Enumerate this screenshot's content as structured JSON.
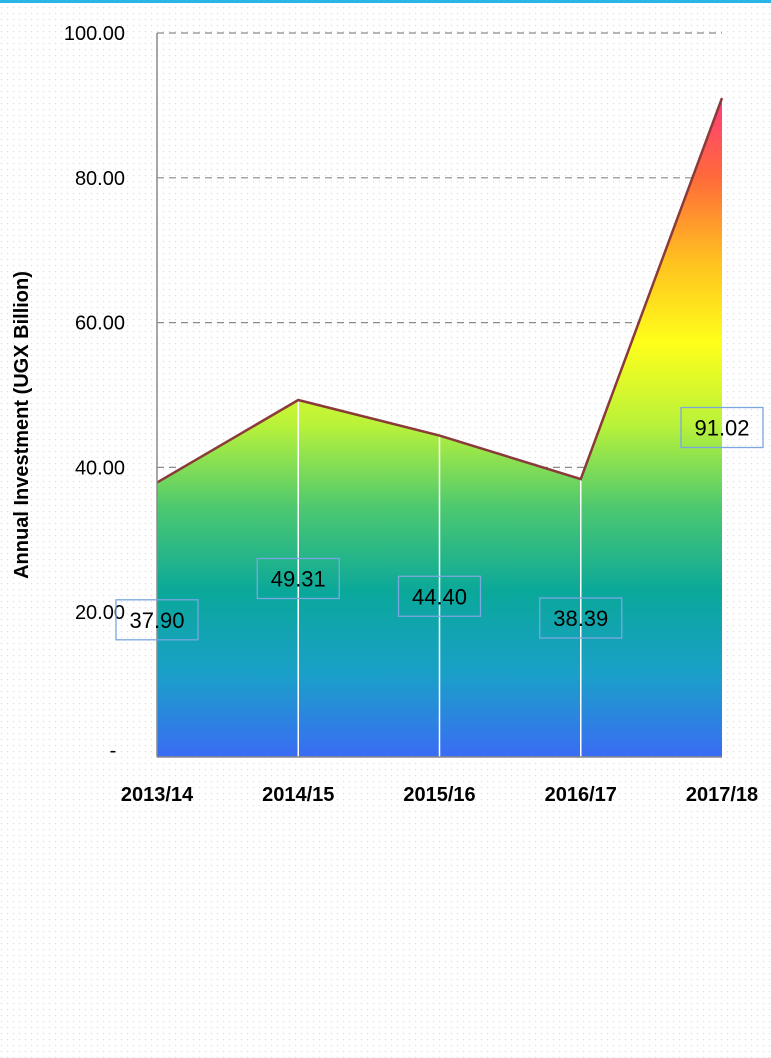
{
  "chart_data": {
    "type": "area",
    "title": "",
    "xlabel": "",
    "ylabel": "Annual Investment (UGX Billion)",
    "categories": [
      "2013/14",
      "2014/15",
      "2015/16",
      "2016/17",
      "2017/18"
    ],
    "values": [
      37.9,
      49.31,
      44.4,
      38.39,
      91.02
    ],
    "data_labels": [
      "37.90",
      "49.31",
      "44.40",
      "38.39",
      "91.02"
    ],
    "ylim": [
      0,
      100
    ],
    "yticks": [
      0,
      20,
      40,
      60,
      80,
      100
    ],
    "ytick_labels": [
      "-",
      "20.00",
      "40.00",
      "60.00",
      "80.00",
      "100.00"
    ],
    "grid": true,
    "colors": {
      "fill_gradient": [
        "#3a6cf4",
        "#1aa0c8",
        "#0aa89a",
        "#4cc870",
        "#b8f23a",
        "#ffff1a",
        "#ffc020",
        "#ff6a3a",
        "#ff3a7e"
      ],
      "outline": "#8b3a3a",
      "label_border": "#7aa7e0",
      "top_border": "#29b6e6"
    }
  }
}
